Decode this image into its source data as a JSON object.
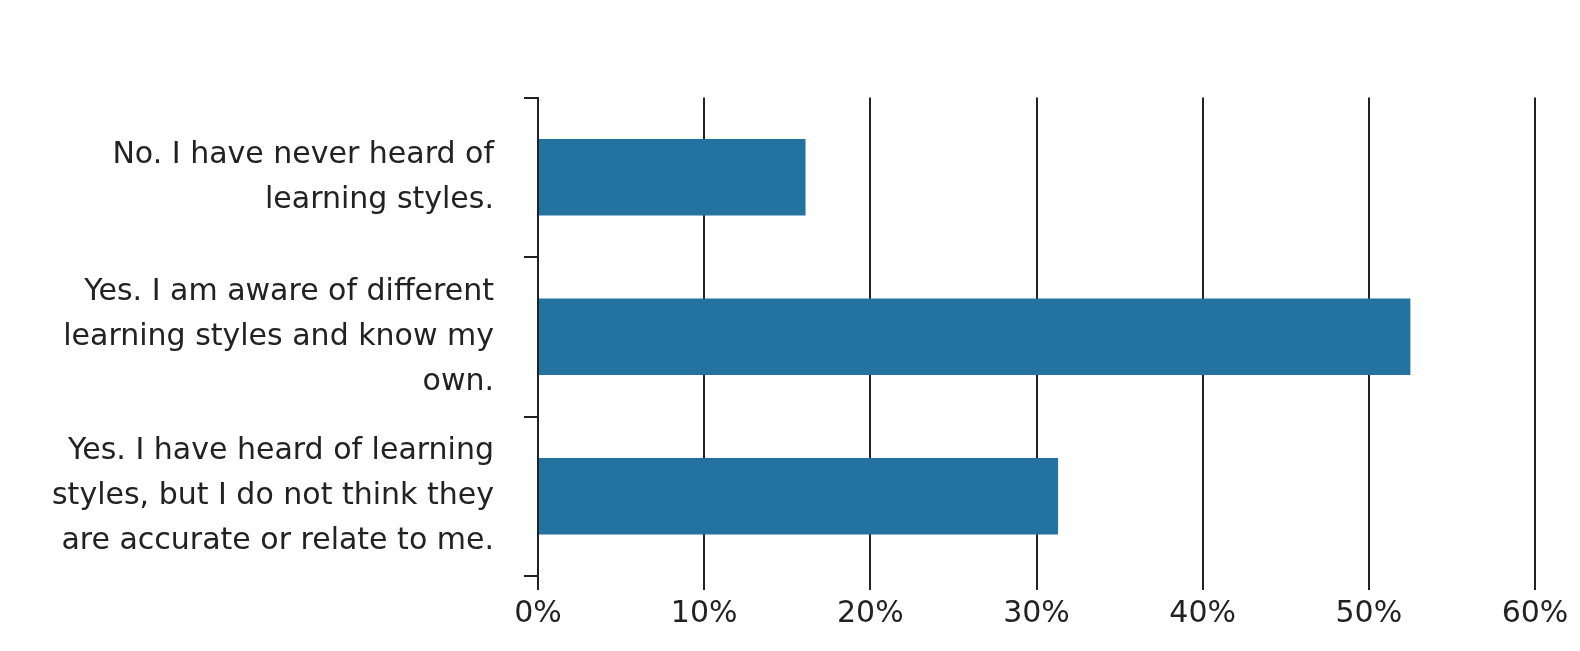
{
  "chart_data": {
    "type": "bar",
    "orientation": "horizontal",
    "categories": [
      "No. I have never heard of learning styles.",
      "Yes. I am aware of different learning styles and know my own.",
      "Yes. I have heard of learning styles, but I do not think they are accurate or relate to me."
    ],
    "values": [
      16.1,
      52.5,
      31.3
    ],
    "color": "#23729f",
    "xlim": [
      0,
      60
    ],
    "xticks": [
      {
        "value": 0,
        "label": "0%"
      },
      {
        "value": 10,
        "label": "10%"
      },
      {
        "value": 20,
        "label": "20%"
      },
      {
        "value": 30,
        "label": "30%"
      },
      {
        "value": 40,
        "label": "40%"
      },
      {
        "value": 50,
        "label": "50%"
      },
      {
        "value": 60,
        "label": "60%"
      }
    ],
    "grid": "x",
    "legend": false
  }
}
